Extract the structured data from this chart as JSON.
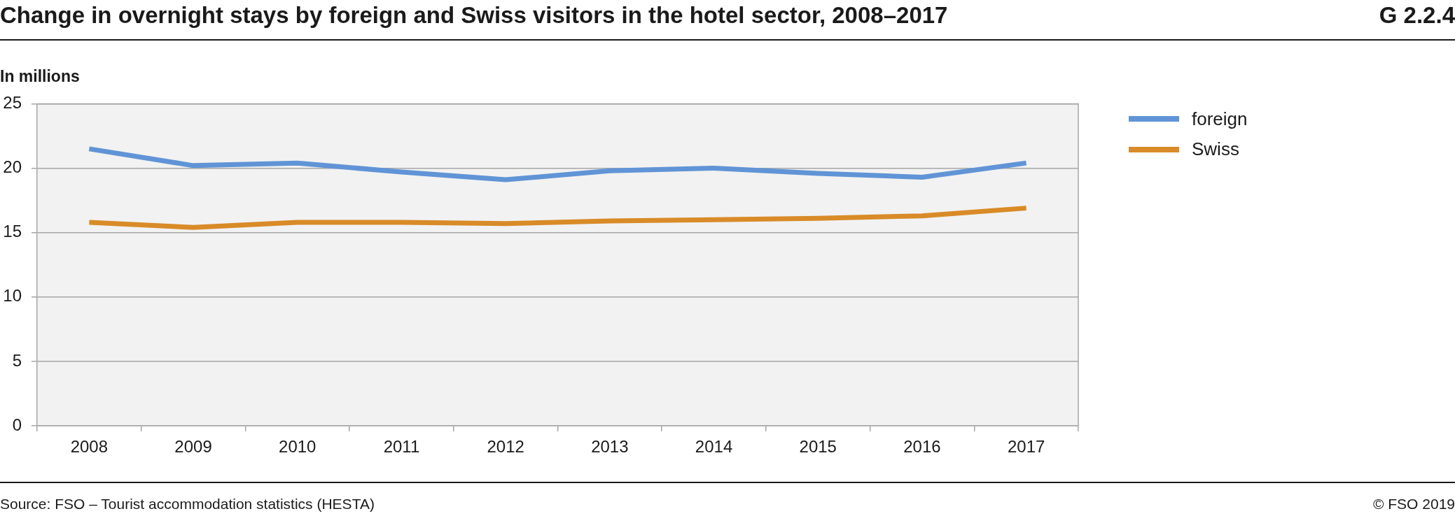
{
  "chart_data": {
    "type": "line",
    "title": "Change in overnight stays by foreign and Swiss visitors in the hotel sector, 2008–2017",
    "ylabel": "In millions",
    "categories": [
      "2008",
      "2009",
      "2010",
      "2011",
      "2012",
      "2013",
      "2014",
      "2015",
      "2016",
      "2017"
    ],
    "series": [
      {
        "name": "foreign",
        "color": "#6094d6",
        "values": [
          21.5,
          20.2,
          20.4,
          19.7,
          19.1,
          19.8,
          20.0,
          19.6,
          19.3,
          20.4
        ]
      },
      {
        "name": "Swiss",
        "color": "#d98b28",
        "values": [
          15.8,
          15.4,
          15.8,
          15.8,
          15.7,
          15.9,
          16.0,
          16.1,
          16.3,
          16.9
        ]
      }
    ],
    "ylim": [
      0,
      25
    ],
    "yticks": [
      0,
      5,
      10,
      15,
      20,
      25
    ],
    "grid": "y",
    "legend": "right",
    "marker": "none",
    "line_style": "solid",
    "annotations": [
      "G 2.2.4",
      "Source: FSO – Tourist accommodation statistics (HESTA)",
      "© FSO 2019"
    ]
  }
}
